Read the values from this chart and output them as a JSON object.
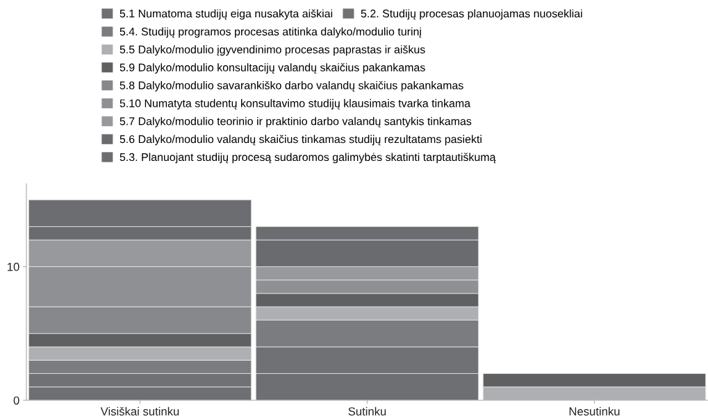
{
  "chart_data": {
    "type": "bar",
    "stacked": true,
    "categories": [
      "Visiškai sutinku",
      "Sutinku",
      "Nesutinku"
    ],
    "series": [
      {
        "name": "5.1 Numatoma studijų eiga nusakyta aiškiai",
        "color": "#6e6f72",
        "values": [
          1,
          2,
          0
        ]
      },
      {
        "name": "5.2. Studijų procesas planuojamas nuosekliai",
        "color": "#707174",
        "values": [
          1,
          2,
          0
        ]
      },
      {
        "name": "5.4. Studijų programos procesas atitinka dalyko/modulio turinį",
        "color": "#7b7c7f",
        "values": [
          1,
          2,
          0
        ]
      },
      {
        "name": "5.5 Dalyko/modulio įgyvendinimo procesas paprastas ir aiškus",
        "color": "#aeafb2",
        "values": [
          1,
          1,
          1
        ]
      },
      {
        "name": "5.9 Dalyko/modulio konsultacijų valandų skaičius pakankamas",
        "color": "#5f6062",
        "values": [
          1,
          1,
          1
        ]
      },
      {
        "name": "5.8 Dalyko/modulio savarankiško darbo valandų skaičius pakankamas",
        "color": "#87888b",
        "values": [
          2,
          0,
          0
        ]
      },
      {
        "name": "5.10 Numatyta studentų konsultavimo studijų klausimais tvarka tinkama",
        "color": "#8f9093",
        "values": [
          3,
          1,
          0
        ]
      },
      {
        "name": "5.7 Dalyko/modulio teorinio ir praktinio darbo valandų santykis tinkamas",
        "color": "#98999c",
        "values": [
          2,
          1,
          0
        ]
      },
      {
        "name": "5.6 Dalyko/modulio valandų skaičius tinkamas studijų rezultatams pasiekti",
        "color": "#6a6b6e",
        "values": [
          1,
          2,
          0
        ]
      },
      {
        "name": "5.3. Planuojant studijų procesą sudaromos galimybės skatinti tarptautiškumą",
        "color": "#6c6d70",
        "values": [
          2,
          1,
          0
        ]
      }
    ],
    "ylim": [
      0,
      16.2
    ],
    "yticks": [
      0,
      10
    ],
    "grid": false,
    "legend": "top"
  }
}
